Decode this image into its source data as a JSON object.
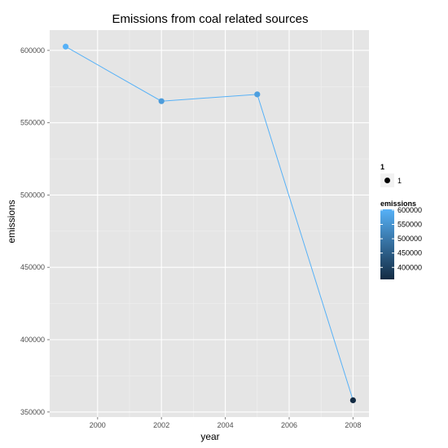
{
  "chart_data": {
    "type": "line",
    "title": "Emissions from coal related sources",
    "xlabel": "year",
    "ylabel": "emissions",
    "xlim": [
      1998.5,
      2008.5
    ],
    "ylim": [
      346500,
      614000
    ],
    "x_ticks": [
      2000,
      2002,
      2004,
      2006,
      2008
    ],
    "y_ticks": [
      350000,
      400000,
      450000,
      500000,
      550000,
      600000
    ],
    "x_tick_labels": [
      "2000",
      "2002",
      "2004",
      "2006",
      "2008"
    ],
    "y_tick_labels": [
      "350000",
      "400000",
      "450000",
      "500000",
      "550000",
      "600000"
    ],
    "grid": true,
    "legend_position": "right",
    "series": [
      {
        "x": [
          1999,
          2002,
          2005,
          2008
        ],
        "y": [
          602600,
          564900,
          569600,
          358100
        ]
      }
    ],
    "legends": {
      "group": {
        "title": "1",
        "entries": [
          "1"
        ]
      },
      "color": {
        "title": "emissions",
        "breaks": [
          600000,
          550000,
          500000,
          450000,
          400000
        ],
        "labels": [
          "600000",
          "550000",
          "500000",
          "450000",
          "400000"
        ],
        "range": [
          358100,
          602600
        ],
        "low_color": "#132B43",
        "high_color": "#56B1F7"
      }
    },
    "colors": {
      "panel_background": "#e5e5e5",
      "grid_major": "#ffffff",
      "grid_minor": "#f2f2f2",
      "line": "#56B1F7"
    }
  }
}
